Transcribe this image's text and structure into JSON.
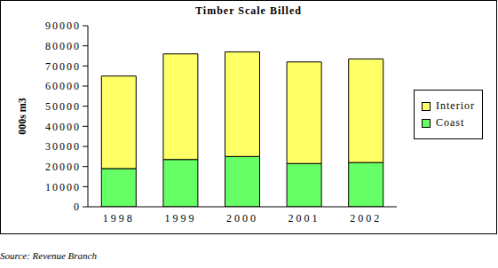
{
  "chart_data": {
    "type": "bar",
    "title": "Timber Scale Billed",
    "y_label": "000s m3",
    "source": "Source: Revenue Branch",
    "categories": [
      "1998",
      "1999",
      "2000",
      "2001",
      "2002"
    ],
    "series": [
      {
        "name": "Coast",
        "color": "#66ff66",
        "values": [
          19000,
          23500,
          25000,
          21500,
          22000
        ]
      },
      {
        "name": "Interior",
        "color": "#ffff66",
        "values": [
          46000,
          52500,
          52000,
          50500,
          51500
        ]
      }
    ],
    "ylim": [
      0,
      90000
    ],
    "yticks": [
      0,
      10000,
      20000,
      30000,
      40000,
      50000,
      60000,
      70000,
      80000,
      90000
    ],
    "stacked": true,
    "grid": false,
    "legend": "right"
  }
}
